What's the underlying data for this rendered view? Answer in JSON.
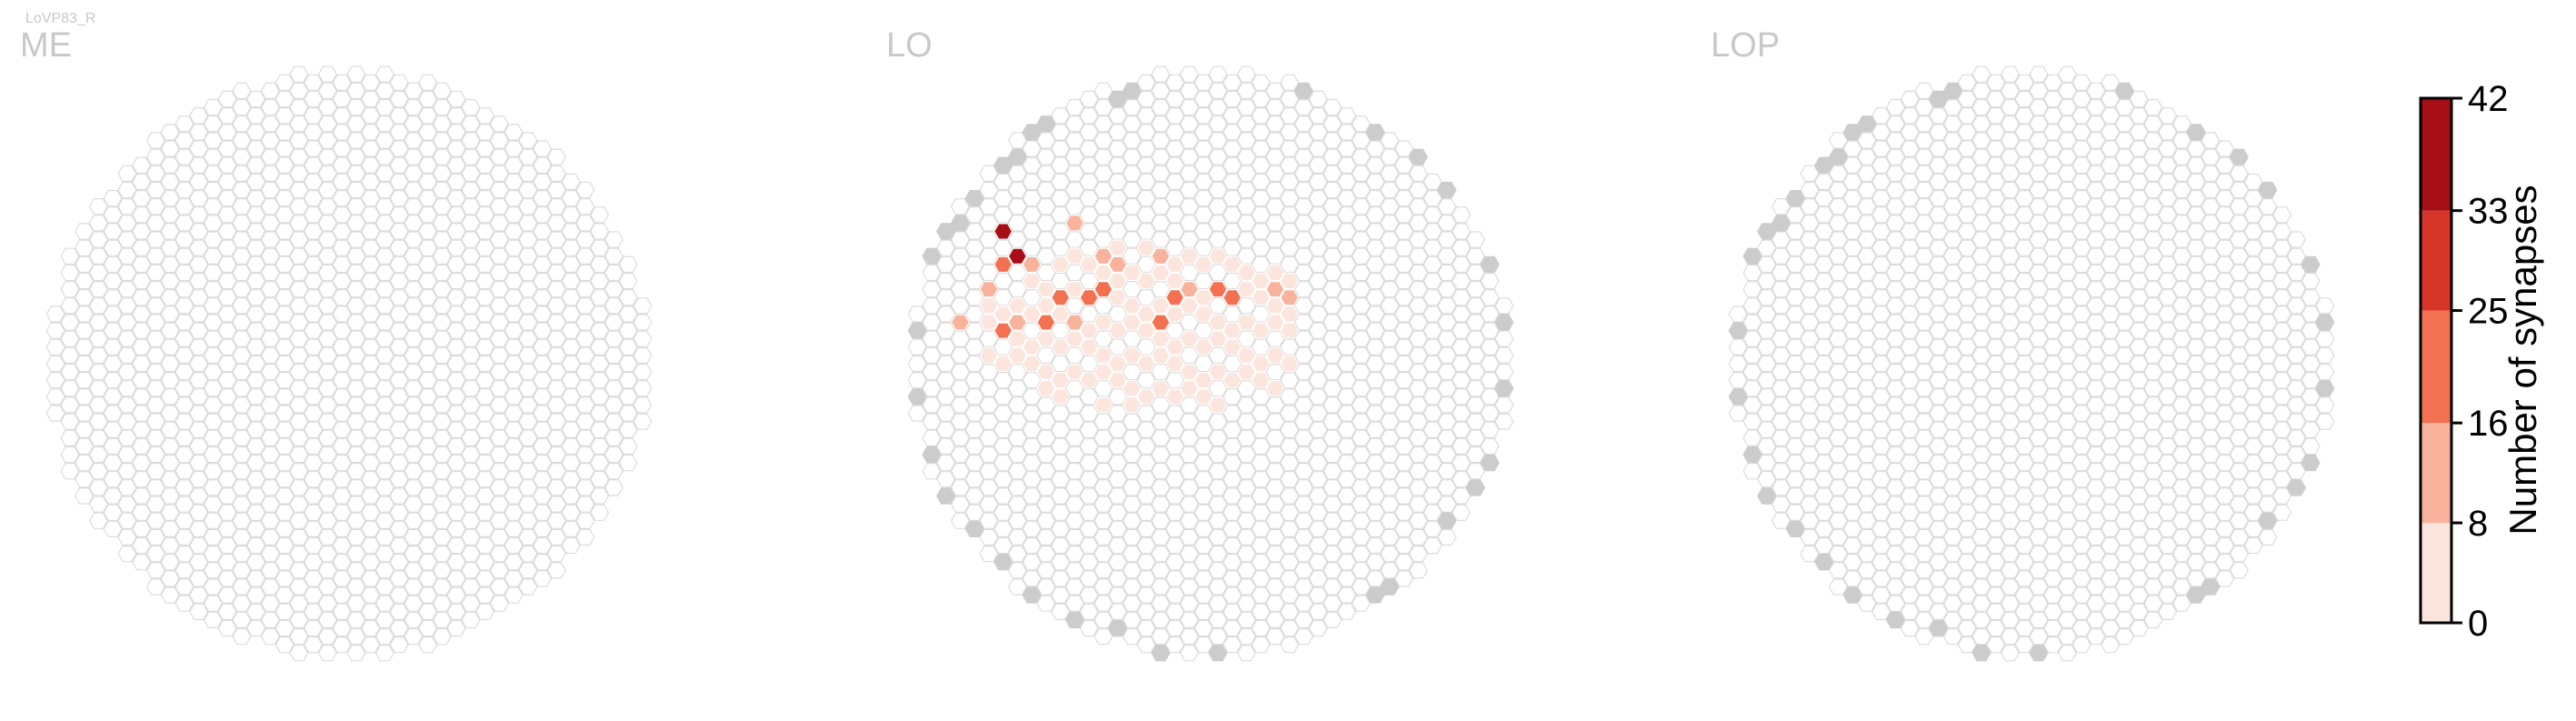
{
  "figure": {
    "cell_type_label": "LoVP83_R"
  },
  "panels": [
    {
      "id": "me",
      "title": "ME"
    },
    {
      "id": "lo",
      "title": "LO"
    },
    {
      "id": "lop",
      "title": "LOP"
    }
  ],
  "colorbar": {
    "label": "Number of synapses",
    "ticks": [
      "0",
      "8",
      "16",
      "25",
      "33",
      "42"
    ]
  },
  "colors": {
    "empty_stroke": "#dcdcdc",
    "outside_fill": "#cccccc",
    "title_color": "#c8c8c8",
    "bins": [
      "#fce5dc",
      "#f9b29b",
      "#f37051",
      "#d8352a",
      "#a50f15"
    ]
  },
  "chart_data": {
    "type": "heatmap",
    "description_units": "synapse count per hexagonal column",
    "value_range": [
      0,
      42
    ],
    "bin_edges": [
      0,
      8,
      16,
      25,
      33,
      42
    ],
    "panels": [
      {
        "title": "ME",
        "shape": "hex-disc",
        "synapses": []
      },
      {
        "title": "LO",
        "shape": "hex-disc",
        "synapses": [
          {
            "col": 5,
            "row": 7,
            "value": 34
          },
          {
            "col": 6,
            "row": 8,
            "value": 42
          },
          {
            "col": 5,
            "row": 9,
            "value": 20
          },
          {
            "col": 8,
            "row": 8,
            "value": 27
          },
          {
            "col": 8,
            "row": 10,
            "value": 22
          },
          {
            "col": 9,
            "row": 9,
            "value": 20
          },
          {
            "col": 7,
            "row": 11,
            "value": 18
          },
          {
            "col": 10,
            "row": 10,
            "value": 22
          },
          {
            "col": 11,
            "row": 9,
            "value": 14
          },
          {
            "col": 13,
            "row": 11,
            "value": 23
          },
          {
            "col": 14,
            "row": 10,
            "value": 18
          },
          {
            "col": 15,
            "row": 10,
            "value": 16
          },
          {
            "col": 17,
            "row": 10,
            "value": 20
          },
          {
            "col": 16,
            "row": 11,
            "value": 14
          },
          {
            "col": 18,
            "row": 9,
            "value": 15
          },
          {
            "col": 4,
            "row": 12,
            "value": 14
          },
          {
            "col": 5,
            "row": 12,
            "value": 18
          },
          {
            "col": 3,
            "row": 11,
            "value": 12
          },
          {
            "col": 4,
            "row": 10,
            "value": 12
          },
          {
            "col": 6,
            "row": 11,
            "value": 12
          },
          {
            "col": 9,
            "row": 11,
            "value": 15
          },
          {
            "col": 11,
            "row": 11,
            "value": 14
          },
          {
            "col": 12,
            "row": 12,
            "value": 18
          },
          {
            "col": 9,
            "row": 7,
            "value": 10
          },
          {
            "col": 10,
            "row": 8,
            "value": 11
          },
          {
            "col": 12,
            "row": 6,
            "value": 9
          },
          {
            "col": 14,
            "row": 5,
            "value": 12
          },
          {
            "col": 15,
            "row": 6,
            "value": 11
          },
          {
            "col": 13,
            "row": 8,
            "value": 12
          },
          {
            "col": 19,
            "row": 11,
            "value": 12
          },
          {
            "col": 20,
            "row": 10,
            "value": 9
          },
          {
            "col": 7,
            "row": 9,
            "value": 13
          }
        ],
        "low_region": {
          "value_range": [
            1,
            7
          ],
          "cols": [
            2,
            20
          ],
          "rows": [
            4,
            15
          ]
        }
      },
      {
        "title": "LOP",
        "shape": "hex-disc",
        "synapses": []
      }
    ]
  }
}
